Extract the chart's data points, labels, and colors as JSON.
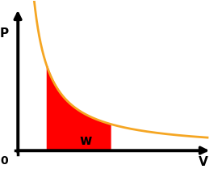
{
  "bg_color": "#ffffff",
  "curve_color": "#f5a623",
  "fill_color": "#ff0000",
  "axis_color": "#000000",
  "text_color": "#000000",
  "label_p": "P",
  "label_v": "V",
  "label_0": "0",
  "label_w": "w",
  "k": 1.8,
  "x_curve_start": 0.18,
  "x_curve_end": 3.8,
  "v1": 0.58,
  "v2": 1.85,
  "xlim_min": -0.15,
  "xlim_max": 4.0,
  "ylim_min": -0.5,
  "ylim_max": 5.5,
  "figsize": [
    2.7,
    2.09
  ],
  "dpi": 100
}
